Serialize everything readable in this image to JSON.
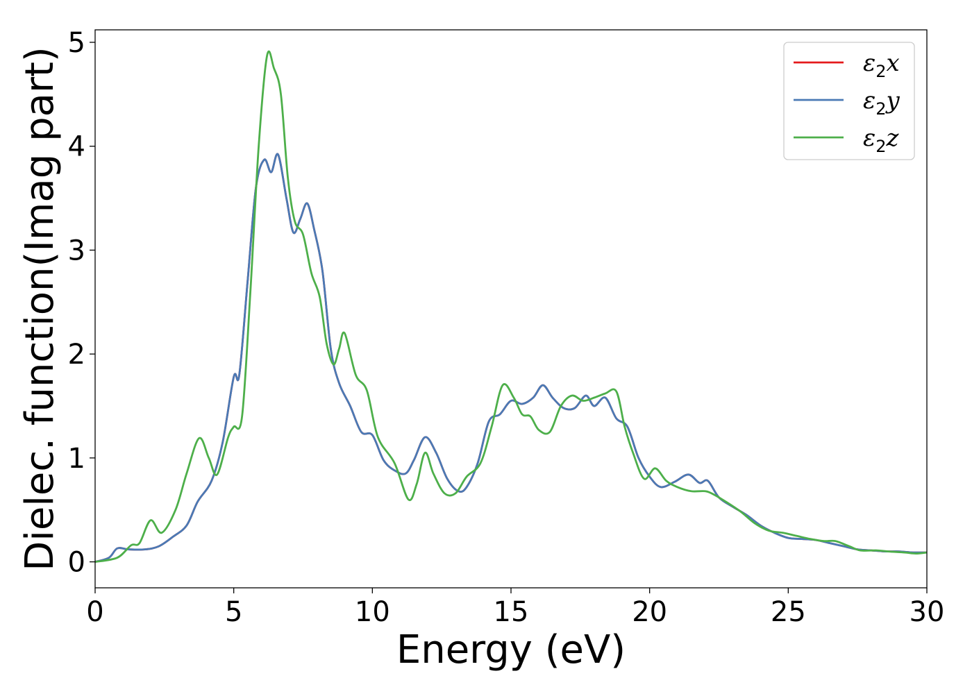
{
  "chart_data": {
    "type": "line",
    "xlabel": "Energy (eV)",
    "ylabel": "Dielec. function(Imag part)",
    "xlim": [
      0,
      30
    ],
    "ylim": [
      -0.25,
      5.12
    ],
    "x_ticks": [
      0,
      5,
      10,
      15,
      20,
      25,
      30
    ],
    "y_ticks": [
      0,
      1,
      2,
      3,
      4,
      5
    ],
    "grid": false,
    "legend_position": "top-right",
    "series": [
      {
        "name": "ε2x",
        "name_base": "ε",
        "name_sub": "2",
        "name_suffix": "x",
        "color": "#e41a1c",
        "points": [
          [
            0,
            0
          ],
          [
            0.5,
            0.04
          ],
          [
            0.8,
            0.13
          ],
          [
            1.2,
            0.12
          ],
          [
            1.8,
            0.12
          ],
          [
            2.3,
            0.15
          ],
          [
            2.8,
            0.24
          ],
          [
            3.3,
            0.35
          ],
          [
            3.7,
            0.58
          ],
          [
            4.2,
            0.78
          ],
          [
            4.6,
            1.15
          ],
          [
            5.0,
            1.78
          ],
          [
            5.2,
            1.8
          ],
          [
            5.5,
            2.7
          ],
          [
            5.8,
            3.6
          ],
          [
            6.1,
            3.87
          ],
          [
            6.35,
            3.75
          ],
          [
            6.6,
            3.92
          ],
          [
            6.9,
            3.5
          ],
          [
            7.15,
            3.17
          ],
          [
            7.4,
            3.3
          ],
          [
            7.65,
            3.45
          ],
          [
            7.9,
            3.2
          ],
          [
            8.2,
            2.8
          ],
          [
            8.5,
            2.05
          ],
          [
            8.8,
            1.72
          ],
          [
            9.2,
            1.5
          ],
          [
            9.6,
            1.25
          ],
          [
            10.0,
            1.22
          ],
          [
            10.4,
            0.98
          ],
          [
            10.8,
            0.88
          ],
          [
            11.2,
            0.85
          ],
          [
            11.5,
            0.98
          ],
          [
            11.9,
            1.2
          ],
          [
            12.3,
            1.05
          ],
          [
            12.7,
            0.8
          ],
          [
            13.1,
            0.68
          ],
          [
            13.4,
            0.72
          ],
          [
            13.8,
            0.95
          ],
          [
            14.2,
            1.35
          ],
          [
            14.6,
            1.42
          ],
          [
            15.0,
            1.55
          ],
          [
            15.4,
            1.52
          ],
          [
            15.8,
            1.58
          ],
          [
            16.15,
            1.7
          ],
          [
            16.5,
            1.58
          ],
          [
            16.9,
            1.48
          ],
          [
            17.3,
            1.48
          ],
          [
            17.7,
            1.6
          ],
          [
            18.0,
            1.5
          ],
          [
            18.4,
            1.58
          ],
          [
            18.8,
            1.38
          ],
          [
            19.2,
            1.3
          ],
          [
            19.6,
            1.0
          ],
          [
            20.0,
            0.82
          ],
          [
            20.4,
            0.72
          ],
          [
            20.9,
            0.77
          ],
          [
            21.4,
            0.84
          ],
          [
            21.8,
            0.76
          ],
          [
            22.1,
            0.78
          ],
          [
            22.5,
            0.62
          ],
          [
            23.0,
            0.53
          ],
          [
            23.5,
            0.45
          ],
          [
            24.0,
            0.35
          ],
          [
            24.5,
            0.28
          ],
          [
            25.0,
            0.23
          ],
          [
            25.5,
            0.22
          ],
          [
            26.0,
            0.21
          ],
          [
            26.5,
            0.18
          ],
          [
            27.0,
            0.15
          ],
          [
            27.5,
            0.12
          ],
          [
            28.0,
            0.11
          ],
          [
            28.5,
            0.1
          ],
          [
            29.0,
            0.1
          ],
          [
            29.5,
            0.09
          ],
          [
            30,
            0.09
          ]
        ]
      },
      {
        "name": "ε2y",
        "name_base": "ε",
        "name_sub": "2",
        "name_suffix": "y",
        "color": "#4a7ab5",
        "points": [
          [
            0,
            0
          ],
          [
            0.5,
            0.04
          ],
          [
            0.8,
            0.13
          ],
          [
            1.2,
            0.12
          ],
          [
            1.8,
            0.12
          ],
          [
            2.3,
            0.15
          ],
          [
            2.8,
            0.24
          ],
          [
            3.3,
            0.35
          ],
          [
            3.7,
            0.58
          ],
          [
            4.2,
            0.78
          ],
          [
            4.6,
            1.15
          ],
          [
            5.0,
            1.78
          ],
          [
            5.2,
            1.8
          ],
          [
            5.5,
            2.7
          ],
          [
            5.8,
            3.6
          ],
          [
            6.1,
            3.87
          ],
          [
            6.35,
            3.75
          ],
          [
            6.6,
            3.92
          ],
          [
            6.9,
            3.5
          ],
          [
            7.15,
            3.17
          ],
          [
            7.4,
            3.3
          ],
          [
            7.65,
            3.45
          ],
          [
            7.9,
            3.2
          ],
          [
            8.2,
            2.8
          ],
          [
            8.5,
            2.05
          ],
          [
            8.8,
            1.72
          ],
          [
            9.2,
            1.5
          ],
          [
            9.6,
            1.25
          ],
          [
            10.0,
            1.22
          ],
          [
            10.4,
            0.98
          ],
          [
            10.8,
            0.88
          ],
          [
            11.2,
            0.85
          ],
          [
            11.5,
            0.98
          ],
          [
            11.9,
            1.2
          ],
          [
            12.3,
            1.05
          ],
          [
            12.7,
            0.8
          ],
          [
            13.1,
            0.68
          ],
          [
            13.4,
            0.72
          ],
          [
            13.8,
            0.95
          ],
          [
            14.2,
            1.35
          ],
          [
            14.6,
            1.42
          ],
          [
            15.0,
            1.55
          ],
          [
            15.4,
            1.52
          ],
          [
            15.8,
            1.58
          ],
          [
            16.15,
            1.7
          ],
          [
            16.5,
            1.58
          ],
          [
            16.9,
            1.48
          ],
          [
            17.3,
            1.48
          ],
          [
            17.7,
            1.6
          ],
          [
            18.0,
            1.5
          ],
          [
            18.4,
            1.58
          ],
          [
            18.8,
            1.38
          ],
          [
            19.2,
            1.3
          ],
          [
            19.6,
            1.0
          ],
          [
            20.0,
            0.82
          ],
          [
            20.4,
            0.72
          ],
          [
            20.9,
            0.77
          ],
          [
            21.4,
            0.84
          ],
          [
            21.8,
            0.76
          ],
          [
            22.1,
            0.78
          ],
          [
            22.5,
            0.62
          ],
          [
            23.0,
            0.53
          ],
          [
            23.5,
            0.45
          ],
          [
            24.0,
            0.35
          ],
          [
            24.5,
            0.28
          ],
          [
            25.0,
            0.23
          ],
          [
            25.5,
            0.22
          ],
          [
            26.0,
            0.21
          ],
          [
            26.5,
            0.18
          ],
          [
            27.0,
            0.15
          ],
          [
            27.5,
            0.12
          ],
          [
            28.0,
            0.11
          ],
          [
            28.5,
            0.1
          ],
          [
            29.0,
            0.1
          ],
          [
            29.5,
            0.09
          ],
          [
            30,
            0.09
          ]
        ]
      },
      {
        "name": "ε2z",
        "name_base": "ε",
        "name_sub": "2",
        "name_suffix": "z",
        "color": "#4daf4a",
        "points": [
          [
            0,
            0
          ],
          [
            0.8,
            0.04
          ],
          [
            1.3,
            0.16
          ],
          [
            1.6,
            0.18
          ],
          [
            2.0,
            0.4
          ],
          [
            2.4,
            0.28
          ],
          [
            2.9,
            0.5
          ],
          [
            3.3,
            0.85
          ],
          [
            3.75,
            1.19
          ],
          [
            4.1,
            1.0
          ],
          [
            4.4,
            0.84
          ],
          [
            4.8,
            1.2
          ],
          [
            5.0,
            1.3
          ],
          [
            5.3,
            1.4
          ],
          [
            5.6,
            2.6
          ],
          [
            5.9,
            4.0
          ],
          [
            6.2,
            4.87
          ],
          [
            6.45,
            4.75
          ],
          [
            6.7,
            4.5
          ],
          [
            6.95,
            3.7
          ],
          [
            7.2,
            3.28
          ],
          [
            7.5,
            3.15
          ],
          [
            7.8,
            2.78
          ],
          [
            8.1,
            2.55
          ],
          [
            8.35,
            2.1
          ],
          [
            8.6,
            1.9
          ],
          [
            8.8,
            2.05
          ],
          [
            9.0,
            2.2
          ],
          [
            9.4,
            1.8
          ],
          [
            9.8,
            1.65
          ],
          [
            10.2,
            1.2
          ],
          [
            10.8,
            0.95
          ],
          [
            11.3,
            0.6
          ],
          [
            11.6,
            0.75
          ],
          [
            11.9,
            1.05
          ],
          [
            12.2,
            0.85
          ],
          [
            12.6,
            0.66
          ],
          [
            13.0,
            0.66
          ],
          [
            13.4,
            0.82
          ],
          [
            13.9,
            0.95
          ],
          [
            14.3,
            1.3
          ],
          [
            14.7,
            1.7
          ],
          [
            15.1,
            1.58
          ],
          [
            15.4,
            1.42
          ],
          [
            15.7,
            1.4
          ],
          [
            16.0,
            1.27
          ],
          [
            16.4,
            1.25
          ],
          [
            16.8,
            1.5
          ],
          [
            17.2,
            1.6
          ],
          [
            17.6,
            1.55
          ],
          [
            18.0,
            1.58
          ],
          [
            18.4,
            1.62
          ],
          [
            18.8,
            1.64
          ],
          [
            19.1,
            1.3
          ],
          [
            19.4,
            1.05
          ],
          [
            19.8,
            0.8
          ],
          [
            20.2,
            0.9
          ],
          [
            20.6,
            0.78
          ],
          [
            21.0,
            0.72
          ],
          [
            21.5,
            0.68
          ],
          [
            22.0,
            0.68
          ],
          [
            22.3,
            0.65
          ],
          [
            22.8,
            0.57
          ],
          [
            23.3,
            0.48
          ],
          [
            23.8,
            0.37
          ],
          [
            24.3,
            0.3
          ],
          [
            24.8,
            0.28
          ],
          [
            25.3,
            0.25
          ],
          [
            25.8,
            0.22
          ],
          [
            26.3,
            0.2
          ],
          [
            26.7,
            0.2
          ],
          [
            27.2,
            0.15
          ],
          [
            27.6,
            0.11
          ],
          [
            28.2,
            0.11
          ],
          [
            28.6,
            0.1
          ],
          [
            29.2,
            0.09
          ],
          [
            29.6,
            0.08
          ],
          [
            30,
            0.09
          ]
        ]
      }
    ]
  }
}
